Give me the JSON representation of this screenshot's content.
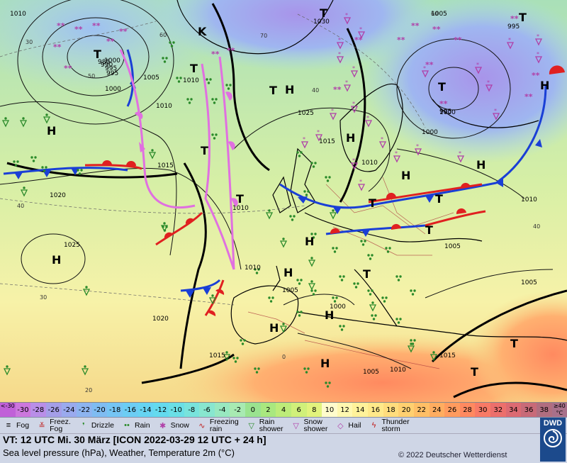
{
  "map": {
    "pressure_labels": [
      "1010",
      "1030",
      "1000",
      "995",
      "985",
      "990",
      "995",
      "1005",
      "1000",
      "1010",
      "1010",
      "1025",
      "1015",
      "1015",
      "1010",
      "1020",
      "1025",
      "1010",
      "1005",
      "1000",
      "1010",
      "1005",
      "1020",
      "1015",
      "1005",
      "1010",
      "1010",
      "1005",
      "995",
      "1000",
      "995",
      "1000",
      "1015",
      "1005"
    ],
    "temp_labels": [
      "30",
      "60",
      "70",
      "50",
      "40",
      "40",
      "30",
      "20",
      "0",
      "60",
      "40"
    ],
    "centers": [
      "H",
      "T",
      "K",
      "T",
      "T",
      "H",
      "T",
      "H",
      "H",
      "T",
      "H",
      "T",
      "T",
      "H",
      "T",
      "H",
      "H",
      "T",
      "T",
      "H",
      "H",
      "T",
      "T",
      "H",
      "T",
      "H",
      "T"
    ]
  },
  "scale": {
    "low_edge": "<-30",
    "high_edge": "≥40 °C",
    "values": [
      "-30",
      "-28",
      "-26",
      "-24",
      "-22",
      "-20",
      "-18",
      "-16",
      "-14",
      "-12",
      "-10",
      "-8",
      "-6",
      "-4",
      "-2",
      "0",
      "2",
      "4",
      "6",
      "8",
      "10",
      "12",
      "14",
      "16",
      "18",
      "20",
      "22",
      "24",
      "26",
      "28",
      "30",
      "32",
      "34",
      "36",
      "38"
    ],
    "colors": [
      "#cc77dd",
      "#b98ee8",
      "#a49ee8",
      "#9aaaee",
      "#8db4f0",
      "#7fbcf2",
      "#75c5f4",
      "#6ccdf4",
      "#66d4f2",
      "#64daee",
      "#6adfe6",
      "#78e3dc",
      "#88e6cf",
      "#98e8c0",
      "#a8eab2",
      "#9ae38f",
      "#a9e87f",
      "#bdec79",
      "#d0f07a",
      "#e2f37d",
      "#fffccc",
      "#fff8b0",
      "#fff29a",
      "#ffe98a",
      "#ffdd7d",
      "#ffd070",
      "#ffbf66",
      "#ffad60",
      "#ff9b5e",
      "#ff8960",
      "#f87a66",
      "#ec6f6c",
      "#dc6a72",
      "#c86a78",
      "#b06e80"
    ]
  },
  "legend": {
    "items": [
      {
        "icon": "fog-icon",
        "glyph": "≡",
        "label": "Fog"
      },
      {
        "icon": "freezing-fog-icon",
        "glyph": "≚",
        "label": "Freez.\nFog"
      },
      {
        "icon": "drizzle-icon",
        "glyph": "❜",
        "label": "Drizzle"
      },
      {
        "icon": "rain-icon",
        "glyph": "••",
        "label": "Rain"
      },
      {
        "icon": "snow-icon",
        "glyph": "✱",
        "label": "Snow"
      },
      {
        "icon": "freezing-rain-icon",
        "glyph": "∿",
        "label": "Freezing\nrain"
      },
      {
        "icon": "rain-shower-icon",
        "glyph": "▽",
        "label": "Rain\nshower"
      },
      {
        "icon": "snow-shower-icon",
        "glyph": "▽",
        "label": "Snow\nshower"
      },
      {
        "icon": "hail-icon",
        "glyph": "◇",
        "label": "Hail"
      },
      {
        "icon": "thunderstorm-icon",
        "glyph": "ϟ",
        "label": "Thunder\nstorm"
      }
    ],
    "vt_line": "VT: 12 UTC Mi.  30 März [ICON 2022-03-29  12 UTC + 24 h]",
    "description": "Sea level pressure (hPa), Weather, Temperature 2m (°C)",
    "copyright": "© 2022 Deutscher Wetterdienst",
    "logo_text": "DWD"
  },
  "colors": {
    "warm_front": "#e02020",
    "cold_front": "#1a3fd6",
    "occlusion": "#e070e0",
    "rain": "#2a8a2a",
    "snow": "#b03fa8"
  }
}
